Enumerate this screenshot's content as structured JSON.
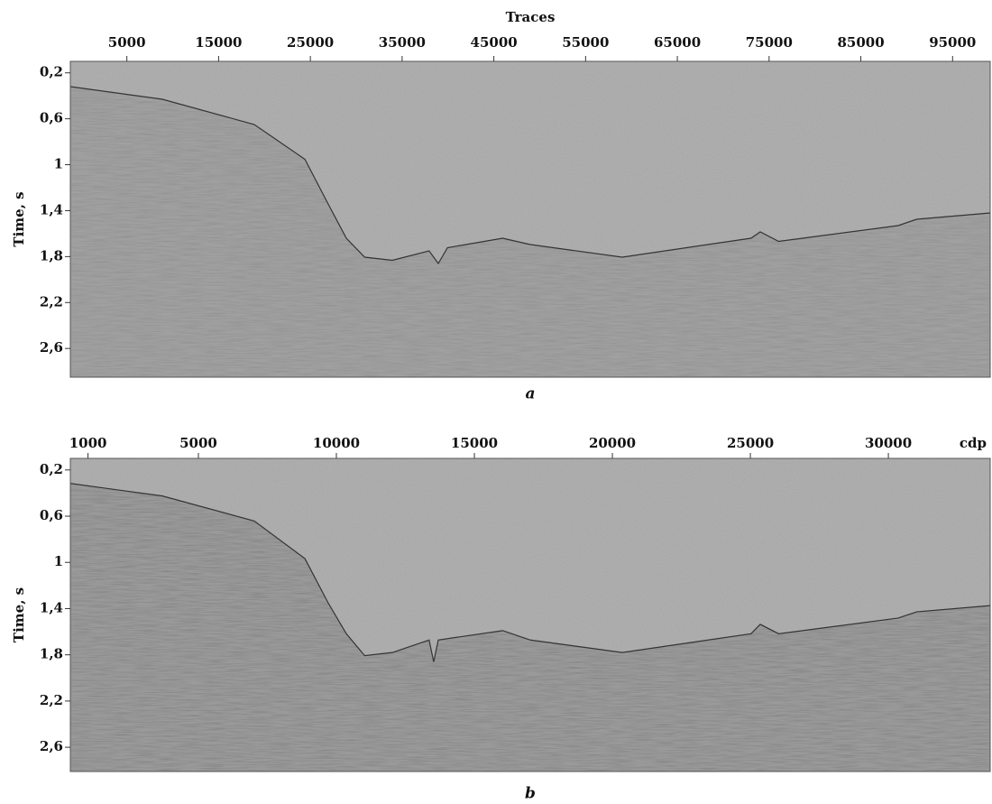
{
  "panels": [
    {
      "x_label": "Traces",
      "xlim": [
        -1160,
        99100
      ],
      "xticks": [
        5000,
        15000,
        25000,
        35000,
        45000,
        55000,
        65000,
        75000,
        85000,
        95000
      ],
      "y_label": "Time, s",
      "ylim": [
        0.1,
        2.85
      ],
      "y_inverted": true,
      "yticks": [
        {
          "value": 0.2,
          "label": "0,2"
        },
        {
          "value": 0.6,
          "label": "0,6"
        },
        1,
        {
          "value": 1.4,
          "label": "1,4"
        },
        {
          "value": 1.8,
          "label": "1,8"
        },
        {
          "value": 2.2,
          "label": "2,2"
        },
        {
          "value": 2.6,
          "label": "2,6"
        }
      ],
      "caption": "a"
    },
    {
      "x_label": "cdp",
      "xlim": [
        360,
        33690
      ],
      "xticks": [
        1000,
        5000,
        10000,
        15000,
        20000,
        25000,
        30000
      ],
      "y_label": "Time, s",
      "ylim": [
        0.1,
        2.81
      ],
      "y_inverted": true,
      "yticks": [
        {
          "value": 0.2,
          "label": "0,2"
        },
        {
          "value": 0.6,
          "label": "0,6"
        },
        1,
        {
          "value": 1.4,
          "label": "1,4"
        },
        {
          "value": 1.8,
          "label": "1,8"
        },
        {
          "value": 2.2,
          "label": "2,2"
        },
        {
          "value": 2.6,
          "label": "2,6"
        }
      ],
      "caption": "b"
    }
  ]
}
